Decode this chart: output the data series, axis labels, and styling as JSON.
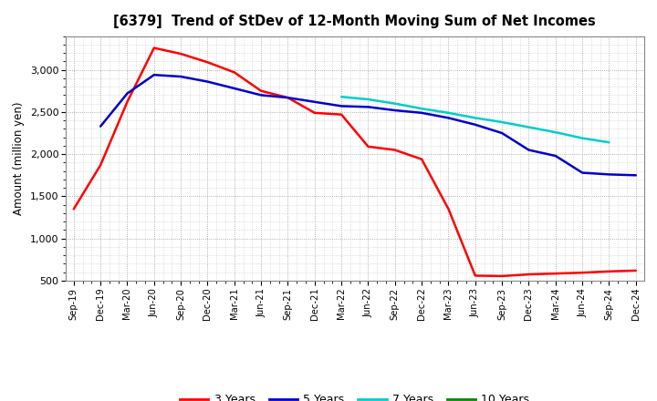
{
  "title": "[6379]  Trend of StDev of 12-Month Moving Sum of Net Incomes",
  "ylabel": "Amount (million yen)",
  "background_color": "#ffffff",
  "grid_color": "#aaaaaa",
  "ylim": [
    500,
    3400
  ],
  "yticks": [
    500,
    1000,
    1500,
    2000,
    2500,
    3000
  ],
  "x_labels": [
    "Sep-19",
    "Dec-19",
    "Mar-20",
    "Jun-20",
    "Sep-20",
    "Dec-20",
    "Mar-21",
    "Jun-21",
    "Sep-21",
    "Dec-21",
    "Mar-22",
    "Jun-22",
    "Sep-22",
    "Dec-22",
    "Mar-23",
    "Jun-23",
    "Sep-23",
    "Dec-23",
    "Mar-24",
    "Jun-24",
    "Sep-24",
    "Dec-24"
  ],
  "series": {
    "3 Years": {
      "color": "#ff0000",
      "linewidth": 1.8,
      "data_x": [
        0,
        1,
        2,
        3,
        4,
        5,
        6,
        7,
        8,
        9,
        10,
        11,
        12,
        13,
        14,
        15,
        16,
        17,
        18,
        19,
        20,
        21
      ],
      "data_y": [
        1350,
        1870,
        2620,
        3260,
        3190,
        3090,
        2970,
        2750,
        2670,
        2490,
        2470,
        2090,
        2050,
        1940,
        1350,
        560,
        555,
        575,
        585,
        595,
        610,
        620
      ]
    },
    "5 Years": {
      "color": "#0000cc",
      "linewidth": 1.8,
      "data_x": [
        1,
        2,
        3,
        4,
        5,
        6,
        7,
        8,
        9,
        10,
        11,
        12,
        13,
        14,
        15,
        16,
        17,
        18,
        19,
        20,
        21
      ],
      "data_y": [
        2330,
        2720,
        2940,
        2920,
        2860,
        2780,
        2700,
        2670,
        2620,
        2570,
        2560,
        2520,
        2490,
        2430,
        2350,
        2250,
        2050,
        1980,
        1780,
        1760,
        1750
      ]
    },
    "7 Years": {
      "color": "#00cccc",
      "linewidth": 1.8,
      "data_x": [
        10,
        11,
        12,
        13,
        14,
        15,
        16,
        17,
        18,
        19,
        20
      ],
      "data_y": [
        2680,
        2650,
        2600,
        2540,
        2490,
        2430,
        2380,
        2320,
        2260,
        2190,
        2140
      ]
    },
    "10 Years": {
      "color": "#008800",
      "linewidth": 1.8,
      "data_x": [],
      "data_y": []
    }
  },
  "legend_entries": [
    "3 Years",
    "5 Years",
    "7 Years",
    "10 Years"
  ],
  "legend_colors": [
    "#ff0000",
    "#0000cc",
    "#00cccc",
    "#008800"
  ]
}
